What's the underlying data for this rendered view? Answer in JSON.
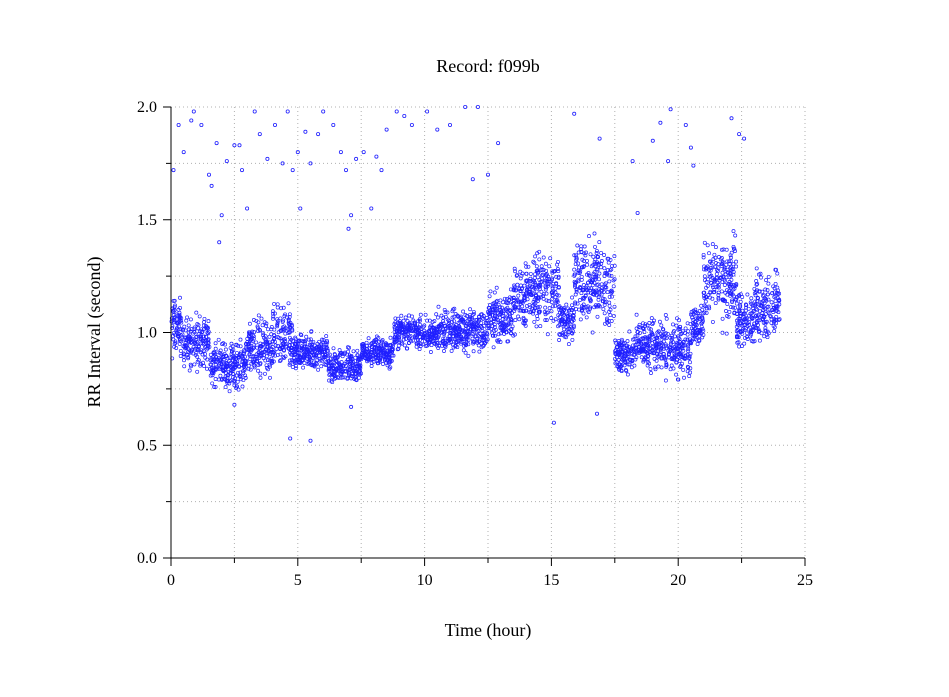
{
  "chart_data": {
    "type": "scatter",
    "title": "Record:  f099b",
    "xlabel": "Time (hour)",
    "ylabel": "RR Interval (second)",
    "xlim": [
      0,
      25
    ],
    "ylim": [
      0.0,
      2.0
    ],
    "x_ticks": [
      "0",
      "5",
      "10",
      "15",
      "20",
      "25"
    ],
    "y_ticks": [
      "0.0",
      "0.5",
      "1.0",
      "1.5",
      "2.0"
    ],
    "grid": true,
    "marker_color": "#2020ff",
    "series": [
      {
        "points": [
          [
            0.1,
            1.72
          ],
          [
            0.3,
            1.92
          ],
          [
            0.5,
            1.8
          ],
          [
            0.8,
            1.94
          ],
          [
            0.9,
            1.98
          ],
          [
            1.2,
            1.92
          ],
          [
            1.5,
            1.7
          ],
          [
            1.6,
            1.65
          ],
          [
            1.8,
            1.84
          ],
          [
            1.9,
            1.4
          ],
          [
            2.0,
            1.52
          ],
          [
            2.2,
            1.76
          ],
          [
            2.5,
            1.83
          ],
          [
            2.7,
            1.83
          ],
          [
            2.8,
            1.72
          ],
          [
            3.0,
            1.55
          ],
          [
            3.3,
            1.98
          ],
          [
            3.5,
            1.88
          ],
          [
            3.8,
            1.77
          ],
          [
            4.1,
            1.92
          ],
          [
            4.4,
            1.75
          ],
          [
            4.6,
            1.98
          ],
          [
            4.8,
            1.72
          ],
          [
            5.0,
            1.8
          ],
          [
            5.1,
            1.55
          ],
          [
            5.3,
            1.89
          ],
          [
            5.5,
            1.75
          ],
          [
            5.8,
            1.88
          ],
          [
            6.0,
            1.98
          ],
          [
            6.4,
            1.92
          ],
          [
            6.7,
            1.8
          ],
          [
            6.9,
            1.72
          ],
          [
            7.0,
            1.46
          ],
          [
            7.1,
            1.52
          ],
          [
            7.3,
            1.77
          ],
          [
            7.6,
            1.8
          ],
          [
            7.9,
            1.55
          ],
          [
            8.1,
            1.78
          ],
          [
            8.3,
            1.72
          ],
          [
            8.5,
            1.9
          ],
          [
            8.9,
            1.98
          ],
          [
            9.2,
            1.96
          ],
          [
            9.5,
            1.92
          ],
          [
            10.1,
            1.98
          ],
          [
            10.5,
            1.9
          ],
          [
            11.0,
            1.92
          ],
          [
            11.6,
            2.0
          ],
          [
            11.9,
            1.68
          ],
          [
            12.1,
            2.0
          ],
          [
            12.5,
            1.7
          ],
          [
            12.9,
            1.84
          ],
          [
            15.9,
            1.97
          ],
          [
            16.9,
            1.86
          ],
          [
            18.2,
            1.76
          ],
          [
            18.4,
            1.53
          ],
          [
            19.0,
            1.85
          ],
          [
            19.3,
            1.93
          ],
          [
            19.6,
            1.76
          ],
          [
            19.7,
            1.99
          ],
          [
            20.3,
            1.92
          ],
          [
            20.5,
            1.82
          ],
          [
            20.6,
            1.74
          ],
          [
            22.1,
            1.95
          ],
          [
            22.4,
            1.88
          ],
          [
            22.6,
            1.86
          ],
          [
            4.7,
            0.53
          ],
          [
            5.5,
            0.52
          ],
          [
            15.1,
            0.6
          ],
          [
            16.8,
            0.64
          ],
          [
            7.1,
            0.67
          ],
          [
            2.5,
            0.68
          ]
        ],
        "bands": [
          {
            "x": [
              0.0,
              0.5
            ],
            "low": 0.84,
            "high": 1.2
          },
          {
            "x": [
              0.5,
              1.5
            ],
            "low": 0.8,
            "high": 1.12
          },
          {
            "x": [
              1.5,
              3.0
            ],
            "low": 0.72,
            "high": 1.0
          },
          {
            "x": [
              3.0,
              4.0
            ],
            "low": 0.75,
            "high": 1.1
          },
          {
            "x": [
              4.0,
              4.8
            ],
            "low": 0.76,
            "high": 1.18
          },
          {
            "x": [
              4.8,
              6.2
            ],
            "low": 0.8,
            "high": 1.02
          },
          {
            "x": [
              6.2,
              7.5
            ],
            "low": 0.75,
            "high": 0.96
          },
          {
            "x": [
              7.5,
              8.8
            ],
            "low": 0.82,
            "high": 1.0
          },
          {
            "x": [
              8.8,
              10.5
            ],
            "low": 0.9,
            "high": 1.1
          },
          {
            "x": [
              10.5,
              12.5
            ],
            "low": 0.88,
            "high": 1.14
          },
          {
            "x": [
              12.5,
              13.5
            ],
            "low": 0.9,
            "high": 1.22
          },
          {
            "x": [
              13.5,
              14.0
            ],
            "low": 0.95,
            "high": 1.35
          },
          {
            "x": [
              14.0,
              15.3
            ],
            "low": 0.96,
            "high": 1.42
          },
          {
            "x": [
              15.3,
              15.9
            ],
            "low": 0.92,
            "high": 1.18
          },
          {
            "x": [
              15.9,
              17.5
            ],
            "low": 0.95,
            "high": 1.48
          },
          {
            "x": [
              17.5,
              18.3
            ],
            "low": 0.78,
            "high": 1.02
          },
          {
            "x": [
              18.3,
              19.5
            ],
            "low": 0.8,
            "high": 1.1
          },
          {
            "x": [
              19.5,
              20.5
            ],
            "low": 0.76,
            "high": 1.1
          },
          {
            "x": [
              20.5,
              21.0
            ],
            "low": 0.9,
            "high": 1.15
          },
          {
            "x": [
              21.0,
              22.3
            ],
            "low": 0.98,
            "high": 1.48
          },
          {
            "x": [
              22.3,
              23.0
            ],
            "low": 0.88,
            "high": 1.22
          },
          {
            "x": [
              23.0,
              24.0
            ],
            "low": 0.9,
            "high": 1.32
          }
        ]
      }
    ]
  }
}
